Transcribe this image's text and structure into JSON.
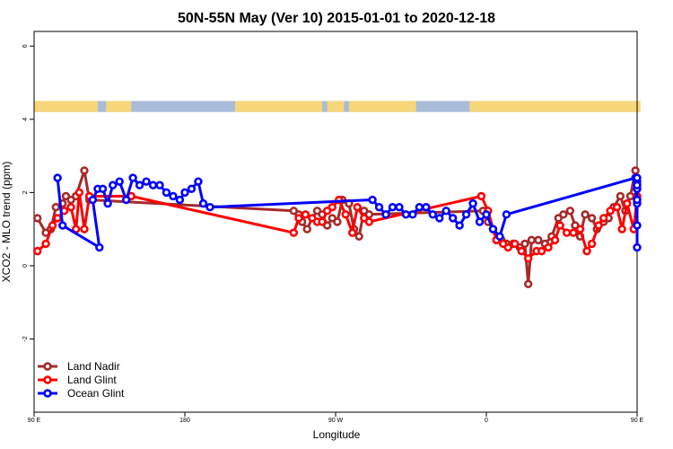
{
  "chart_data": {
    "type": "line",
    "title": "50N-55N May (Ver 10)   2015-01-01 to 2020-12-18",
    "xlabel": "Longitude",
    "ylabel": "XCO2 - MLO trend (ppm)",
    "xlim": [
      90,
      450
    ],
    "ylim": [
      -4,
      6.4
    ],
    "x_ticks": [
      {
        "value": 90,
        "label": "90 E"
      },
      {
        "value": 180,
        "label": "180"
      },
      {
        "value": 270,
        "label": "90 W"
      },
      {
        "value": 360,
        "label": "0"
      },
      {
        "value": 450,
        "label": "90 E"
      }
    ],
    "y_ticks": [
      {
        "value": -2,
        "label": "-2"
      },
      {
        "value": 0,
        "label": "0"
      },
      {
        "value": 2,
        "label": "2"
      },
      {
        "value": 4,
        "label": "4"
      },
      {
        "value": 6,
        "label": "6"
      }
    ],
    "grid": false,
    "legend_position": "bottom-left",
    "land_sea_band": {
      "ymin": 4.2,
      "ymax": 4.5,
      "land_color": "#f7d67a",
      "sea_color": "#a9bcd9"
    },
    "series": [
      {
        "name": "Land Nadir",
        "color": "#a52a2a",
        "points": [
          [
            92,
            1.3
          ],
          [
            97,
            0.9
          ],
          [
            100,
            1.0
          ],
          [
            103,
            1.6
          ],
          [
            107,
            1.7
          ],
          [
            109,
            1.9
          ],
          [
            112,
            1.8
          ],
          [
            115,
            1.9
          ],
          [
            120,
            2.6
          ],
          [
            123,
            1.8
          ],
          [
            245,
            1.5
          ],
          [
            248,
            1.4
          ],
          [
            250,
            1.2
          ],
          [
            253,
            1.0
          ],
          [
            256,
            1.3
          ],
          [
            259,
            1.5
          ],
          [
            262,
            1.4
          ],
          [
            265,
            1.1
          ],
          [
            268,
            1.3
          ],
          [
            271,
            1.2
          ],
          [
            274,
            1.8
          ],
          [
            278,
            1.7
          ],
          [
            281,
            1.0
          ],
          [
            284,
            0.8
          ],
          [
            287,
            1.5
          ],
          [
            290,
            1.4
          ],
          [
            358,
            1.5
          ],
          [
            361,
            1.2
          ],
          [
            364,
            1.0
          ],
          [
            367,
            0.8
          ],
          [
            369,
            0.7
          ],
          [
            372,
            0.6
          ],
          [
            376,
            0.6
          ],
          [
            380,
            0.5
          ],
          [
            383,
            0.6
          ],
          [
            385,
            -0.5
          ],
          [
            387,
            0.7
          ],
          [
            391,
            0.7
          ],
          [
            395,
            0.6
          ],
          [
            399,
            0.8
          ],
          [
            403,
            1.3
          ],
          [
            406,
            1.4
          ],
          [
            410,
            1.5
          ],
          [
            413,
            1.1
          ],
          [
            416,
            0.8
          ],
          [
            419,
            1.4
          ],
          [
            423,
            1.3
          ],
          [
            426,
            1.0
          ],
          [
            430,
            1.2
          ],
          [
            433,
            1.3
          ],
          [
            436,
            1.6
          ],
          [
            440,
            1.9
          ],
          [
            443,
            1.5
          ],
          [
            446,
            1.9
          ],
          [
            449,
            2.6
          ],
          [
            452,
            1.8
          ]
        ]
      },
      {
        "name": "Land Glint",
        "color": "#ff0000",
        "points": [
          [
            92,
            0.4
          ],
          [
            97,
            0.6
          ],
          [
            101,
            1.1
          ],
          [
            104,
            1.3
          ],
          [
            108,
            1.5
          ],
          [
            112,
            1.6
          ],
          [
            115,
            1.0
          ],
          [
            117,
            2.0
          ],
          [
            120,
            1.0
          ],
          [
            123,
            1.9
          ],
          [
            148,
            1.9
          ],
          [
            245,
            0.9
          ],
          [
            248,
            1.3
          ],
          [
            252,
            1.4
          ],
          [
            256,
            1.3
          ],
          [
            259,
            1.2
          ],
          [
            262,
            1.2
          ],
          [
            265,
            1.5
          ],
          [
            268,
            1.6
          ],
          [
            272,
            1.8
          ],
          [
            276,
            1.4
          ],
          [
            280,
            0.9
          ],
          [
            283,
            1.6
          ],
          [
            287,
            1.3
          ],
          [
            290,
            1.2
          ],
          [
            357,
            1.9
          ],
          [
            361,
            1.5
          ],
          [
            364,
            1.0
          ],
          [
            366,
            0.7
          ],
          [
            370,
            0.6
          ],
          [
            373,
            0.5
          ],
          [
            377,
            0.6
          ],
          [
            381,
            0.4
          ],
          [
            385,
            0.2
          ],
          [
            390,
            0.4
          ],
          [
            393,
            0.4
          ],
          [
            397,
            0.5
          ],
          [
            401,
            0.7
          ],
          [
            404,
            1.1
          ],
          [
            408,
            0.9
          ],
          [
            412,
            0.9
          ],
          [
            416,
            1.0
          ],
          [
            420,
            0.4
          ],
          [
            423,
            0.6
          ],
          [
            427,
            1.1
          ],
          [
            430,
            1.3
          ],
          [
            434,
            1.5
          ],
          [
            438,
            1.6
          ],
          [
            441,
            1.0
          ],
          [
            444,
            1.7
          ],
          [
            448,
            1.0
          ],
          [
            451,
            1.9
          ],
          [
            460,
            1.9
          ]
        ]
      },
      {
        "name": "Ocean Glint",
        "color": "#0000ff",
        "points": [
          [
            104,
            2.4
          ],
          [
            107,
            1.1
          ],
          [
            129,
            0.5
          ],
          [
            125,
            1.8
          ],
          [
            128,
            2.1
          ],
          [
            131,
            2.1
          ],
          [
            134,
            1.7
          ],
          [
            137,
            2.2
          ],
          [
            141,
            2.3
          ],
          [
            145,
            1.8
          ],
          [
            149,
            2.4
          ],
          [
            153,
            2.2
          ],
          [
            157,
            2.3
          ],
          [
            161,
            2.2
          ],
          [
            165,
            2.2
          ],
          [
            169,
            2.0
          ],
          [
            173,
            1.9
          ],
          [
            177,
            1.8
          ],
          [
            180,
            2.0
          ],
          [
            184,
            2.1
          ],
          [
            188,
            2.3
          ],
          [
            191,
            1.7
          ],
          [
            195,
            1.6
          ],
          [
            292,
            1.8
          ],
          [
            296,
            1.6
          ],
          [
            300,
            1.4
          ],
          [
            304,
            1.6
          ],
          [
            308,
            1.6
          ],
          [
            312,
            1.4
          ],
          [
            316,
            1.4
          ],
          [
            320,
            1.6
          ],
          [
            324,
            1.6
          ],
          [
            328,
            1.4
          ],
          [
            332,
            1.3
          ],
          [
            336,
            1.5
          ],
          [
            340,
            1.3
          ],
          [
            344,
            1.1
          ],
          [
            348,
            1.4
          ],
          [
            352,
            1.7
          ],
          [
            356,
            1.2
          ],
          [
            360,
            1.4
          ],
          [
            364,
            1.0
          ],
          [
            368,
            0.8
          ],
          [
            372,
            1.4
          ],
          [
            449,
            2.4
          ],
          [
            452,
            1.1
          ],
          [
            460,
            0.5
          ],
          [
            457,
            1.8
          ],
          [
            461,
            2.1
          ],
          [
            465,
            2.1
          ],
          [
            468,
            1.7
          ],
          [
            472,
            2.2
          ],
          [
            476,
            2.3
          ],
          [
            480,
            1.8
          ],
          [
            484,
            2.4
          ],
          [
            488,
            2.2
          ]
        ]
      }
    ]
  }
}
